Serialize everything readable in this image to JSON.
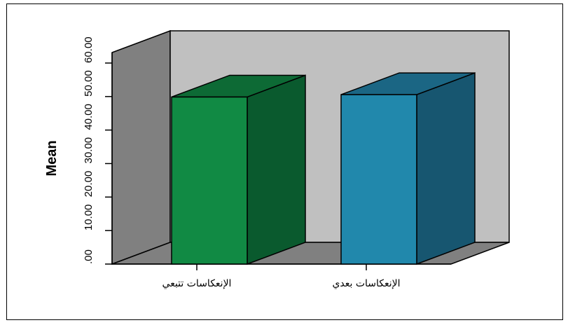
{
  "chart_data": {
    "type": "bar",
    "categories": [
      "الإنعكاسات تتبعي",
      "الإنعكاسات بعدي"
    ],
    "values": [
      50.5,
      51.2
    ],
    "ylabel": "Mean",
    "ylim": [
      0,
      60
    ],
    "yticks": [
      ".00",
      "10.00",
      "20.00",
      "30.00",
      "40.00",
      "50.00",
      "60.00"
    ],
    "style": "3d-bar",
    "grid": false,
    "colors": {
      "bar_front": [
        "#118a44",
        "#2188ac"
      ],
      "bar_side": [
        "#0a5a2e",
        "#175670"
      ],
      "bar_top": [
        "#0d6a35",
        "#1b6684"
      ],
      "back_wall": "#c0c0c0",
      "side_wall": "#808080",
      "floor": "#808080"
    }
  }
}
